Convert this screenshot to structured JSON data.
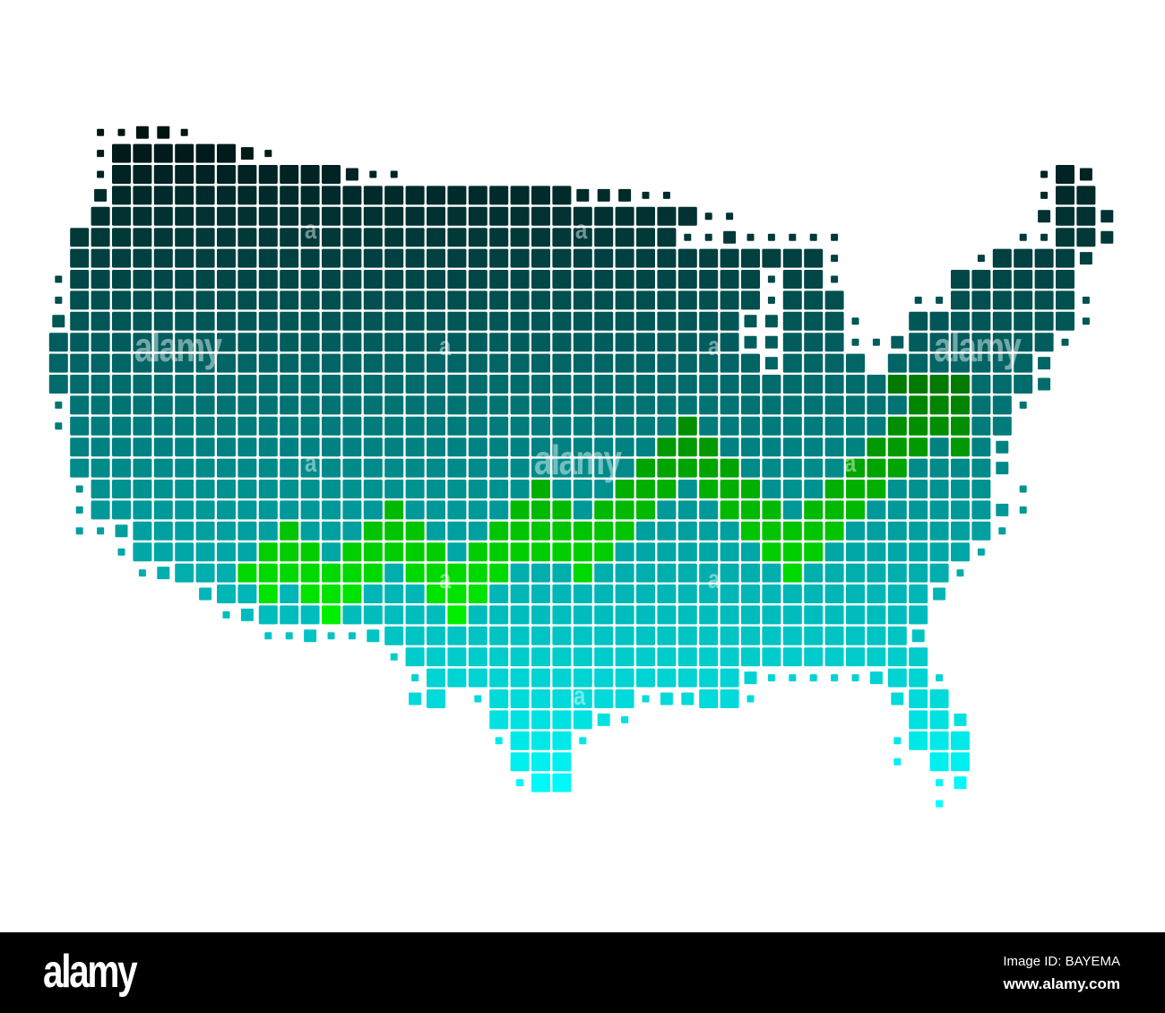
{
  "map": {
    "subject": "United States (contiguous) dot-grid map",
    "colors": {
      "gradient_top": "#011414",
      "gradient_bottom": "#00ffff",
      "route_top": "#007a00",
      "route_bottom": "#00ee00",
      "grid_lines": "#ffffff"
    }
  },
  "watermarks": {
    "word": "alamy",
    "letter": "a"
  },
  "footer": {
    "logo": "alamy",
    "image_id": "Image ID: BAYEMA",
    "url": "www.alamy.com"
  }
}
